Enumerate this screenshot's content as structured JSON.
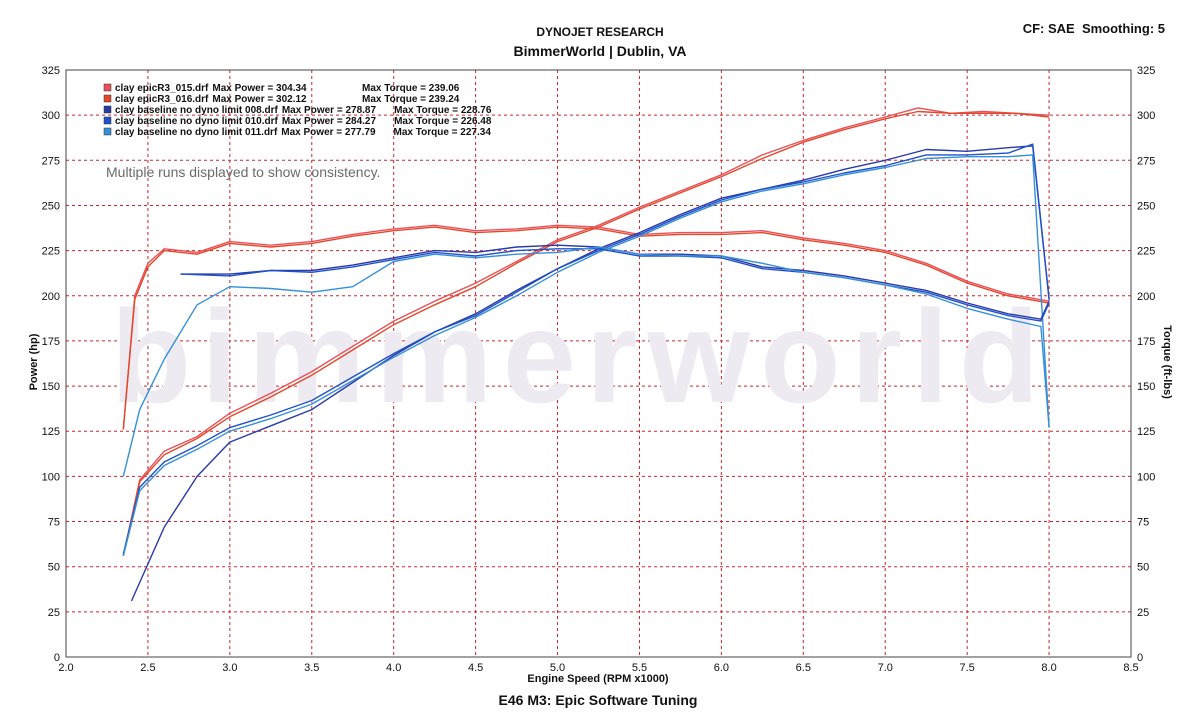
{
  "header": {
    "line1": "DYNOJET RESEARCH",
    "line2": "BimmerWorld | Dublin, VA",
    "settings": "CF: SAE  Smoothing: 5"
  },
  "footer": {
    "title": "E46 M3: Epic Software Tuning"
  },
  "watermark": "bimmerworld",
  "note": "Multiple runs displayed to show consistency.",
  "colors": {
    "grid": "#c9262a",
    "run015": "#e8505a",
    "run016": "#e2482a",
    "run008": "#2a3aa8",
    "run010": "#1f52c8",
    "run011": "#3590d8"
  },
  "chart_data": {
    "type": "line",
    "title": "DYNOJET RESEARCH",
    "subtitle": "BimmerWorld | Dublin, VA",
    "xlabel": "Engine Speed (RPM x1000)",
    "ylabel": "Power (hp)",
    "y2label": "Torque (ft-lbs)",
    "xlim": [
      2.0,
      8.5
    ],
    "ylim": [
      0,
      325
    ],
    "y2lim": [
      0,
      325
    ],
    "x_ticks": [
      "2.0",
      "2.5",
      "3.0",
      "3.5",
      "4.0",
      "4.5",
      "5.0",
      "5.5",
      "6.0",
      "6.5",
      "7.0",
      "7.5",
      "8.0",
      "8.5"
    ],
    "y_ticks": [
      "0",
      "25",
      "50",
      "75",
      "100",
      "125",
      "150",
      "175",
      "200",
      "225",
      "250",
      "275",
      "300",
      "325"
    ],
    "grid": true,
    "legend_position": "top-left",
    "legend": [
      {
        "key": "run015",
        "file": "clay epicR3_015.drf",
        "power_label": "Max Power = 304.34",
        "torque_label": "Max Torque = 239.06"
      },
      {
        "key": "run016",
        "file": "clay epicR3_016.drf",
        "power_label": "Max Power = 302.12",
        "torque_label": "Max Torque = 239.24"
      },
      {
        "key": "run008",
        "file": "clay baseline no dyno limit 008.drf",
        "power_label": "Max Power = 278.87",
        "torque_label": "Max Torque = 228.76"
      },
      {
        "key": "run010",
        "file": "clay baseline no dyno limit 010.drf",
        "power_label": "Max Power = 284.27",
        "torque_label": "Max Torque = 226.48"
      },
      {
        "key": "run011",
        "file": "clay baseline no dyno limit 011.drf",
        "power_label": "Max Power = 277.79",
        "torque_label": "Max Torque = 227.34"
      }
    ],
    "series": [
      {
        "name": "clay epicR3_015.drf",
        "key": "run015",
        "measure": "power",
        "x": [
          2.35,
          2.45,
          2.6,
          2.8,
          3.0,
          3.25,
          3.5,
          3.75,
          4.0,
          4.25,
          4.5,
          4.75,
          5.0,
          5.25,
          5.5,
          5.75,
          6.0,
          6.25,
          6.5,
          6.75,
          7.0,
          7.2,
          7.4,
          7.6,
          7.8,
          8.0
        ],
        "y": [
          56,
          98,
          114,
          122,
          135,
          146,
          158,
          172,
          186,
          197,
          207,
          219,
          231,
          239,
          249,
          258,
          267,
          278,
          286,
          293,
          299,
          304,
          301,
          302,
          301,
          300
        ]
      },
      {
        "name": "clay epicR3_016.drf",
        "key": "run016",
        "measure": "power",
        "x": [
          2.35,
          2.45,
          2.6,
          2.8,
          3.0,
          3.25,
          3.5,
          3.75,
          4.0,
          4.25,
          4.5,
          4.75,
          5.0,
          5.25,
          5.5,
          5.75,
          6.0,
          6.25,
          6.5,
          6.75,
          7.0,
          7.2,
          7.4,
          7.6,
          7.8,
          8.0
        ],
        "y": [
          56,
          97,
          112,
          121,
          133,
          144,
          156,
          170,
          184,
          195,
          205,
          218,
          230,
          238,
          248,
          257,
          266,
          276,
          285,
          292,
          298,
          302,
          301,
          301,
          301,
          299
        ]
      },
      {
        "name": "clay epicR3_015.drf",
        "key": "run015",
        "measure": "torque",
        "x": [
          2.35,
          2.42,
          2.5,
          2.6,
          2.8,
          3.0,
          3.25,
          3.5,
          3.75,
          4.0,
          4.25,
          4.5,
          4.75,
          5.0,
          5.25,
          5.5,
          5.75,
          6.0,
          6.25,
          6.5,
          6.75,
          7.0,
          7.25,
          7.5,
          7.75,
          8.0
        ],
        "y": [
          126,
          200,
          218,
          226,
          224,
          230,
          228,
          230,
          234,
          237,
          239,
          236,
          237,
          239,
          238,
          234,
          235,
          235,
          236,
          232,
          229,
          225,
          218,
          208,
          201,
          197
        ]
      },
      {
        "name": "clay epicR3_016.drf",
        "key": "run016",
        "measure": "torque",
        "x": [
          2.35,
          2.42,
          2.5,
          2.6,
          2.8,
          3.0,
          3.25,
          3.5,
          3.75,
          4.0,
          4.25,
          4.5,
          4.75,
          5.0,
          5.25,
          5.5,
          5.75,
          6.0,
          6.25,
          6.5,
          6.75,
          7.0,
          7.25,
          7.5,
          7.75,
          8.0
        ],
        "y": [
          126,
          198,
          216,
          225,
          223,
          229,
          227,
          229,
          233,
          236,
          238,
          235,
          236,
          238,
          237,
          233,
          234,
          234,
          235,
          231,
          228,
          224,
          217,
          207,
          200,
          196
        ]
      },
      {
        "name": "clay baseline no dyno limit 008.drf",
        "key": "run008",
        "measure": "power",
        "x": [
          2.4,
          2.6,
          2.8,
          3.0,
          3.25,
          3.5,
          3.75,
          4.0,
          4.25,
          4.5,
          4.75,
          5.0,
          5.25,
          5.5,
          5.75,
          6.0,
          6.25,
          6.5,
          6.75,
          7.0,
          7.25,
          7.5,
          7.75,
          7.9,
          8.0
        ],
        "y": [
          31,
          72,
          100,
          119,
          128,
          137,
          152,
          167,
          180,
          190,
          203,
          215,
          226,
          235,
          245,
          254,
          259,
          264,
          270,
          275,
          281,
          280,
          282,
          283,
          198
        ]
      },
      {
        "name": "clay baseline no dyno limit 010.drf",
        "key": "run010",
        "measure": "power",
        "x": [
          2.35,
          2.45,
          2.6,
          2.8,
          3.0,
          3.25,
          3.5,
          3.75,
          4.0,
          4.25,
          4.5,
          4.75,
          5.0,
          5.25,
          5.5,
          5.75,
          6.0,
          6.25,
          6.5,
          6.75,
          7.0,
          7.25,
          7.5,
          7.75,
          7.9,
          8.0
        ],
        "y": [
          57,
          94,
          108,
          117,
          127,
          134,
          142,
          155,
          168,
          180,
          189,
          202,
          215,
          225,
          234,
          244,
          253,
          259,
          263,
          268,
          272,
          278,
          278,
          279,
          284,
          198
        ]
      },
      {
        "name": "clay baseline no dyno limit 011.drf",
        "key": "run011",
        "measure": "power",
        "x": [
          2.35,
          2.45,
          2.6,
          2.8,
          3.0,
          3.25,
          3.5,
          3.75,
          4.0,
          4.25,
          4.5,
          4.75,
          5.0,
          5.25,
          5.5,
          5.75,
          6.0,
          6.25,
          6.5,
          6.75,
          7.0,
          7.25,
          7.5,
          7.75,
          7.9,
          8.0
        ],
        "y": [
          56,
          92,
          106,
          115,
          125,
          132,
          140,
          153,
          166,
          178,
          188,
          200,
          213,
          224,
          233,
          243,
          252,
          258,
          262,
          267,
          271,
          276,
          277,
          277,
          278,
          127
        ]
      },
      {
        "name": "clay baseline no dyno limit 008.drf",
        "key": "run008",
        "measure": "torque",
        "x": [
          2.7,
          3.0,
          3.25,
          3.5,
          3.75,
          4.0,
          4.25,
          4.5,
          4.75,
          5.0,
          5.25,
          5.5,
          5.75,
          6.0,
          6.25,
          6.5,
          6.75,
          7.0,
          7.25,
          7.5,
          7.75,
          7.95,
          8.0
        ],
        "y": [
          212,
          212,
          214,
          214,
          217,
          221,
          225,
          224,
          227,
          228,
          227,
          223,
          223,
          222,
          216,
          214,
          211,
          207,
          203,
          196,
          190,
          187,
          197
        ]
      },
      {
        "name": "clay baseline no dyno limit 010.drf",
        "key": "run010",
        "measure": "torque",
        "x": [
          2.7,
          3.0,
          3.25,
          3.5,
          3.75,
          4.0,
          4.25,
          4.5,
          4.75,
          5.0,
          5.25,
          5.5,
          5.75,
          6.0,
          6.25,
          6.5,
          6.75,
          7.0,
          7.25,
          7.5,
          7.75,
          7.95,
          8.0
        ],
        "y": [
          212,
          211,
          214,
          213,
          216,
          220,
          224,
          222,
          225,
          226,
          226,
          222,
          222,
          221,
          215,
          213,
          210,
          206,
          202,
          195,
          189,
          186,
          196
        ]
      },
      {
        "name": "clay baseline no dyno limit 011.drf",
        "key": "run011",
        "measure": "torque",
        "x": [
          2.35,
          2.45,
          2.6,
          2.8,
          3.0,
          3.25,
          3.5,
          3.75,
          4.0,
          4.25,
          4.5,
          4.75,
          5.0,
          5.25,
          5.5,
          5.75,
          6.0,
          6.25,
          6.5,
          6.75,
          7.0,
          7.25,
          7.5,
          7.75,
          7.95,
          8.0
        ],
        "y": [
          100,
          137,
          165,
          195,
          205,
          204,
          202,
          205,
          219,
          223,
          221,
          223,
          224,
          227,
          223,
          222,
          222,
          218,
          213,
          210,
          206,
          201,
          193,
          187,
          183,
          127
        ]
      }
    ]
  }
}
